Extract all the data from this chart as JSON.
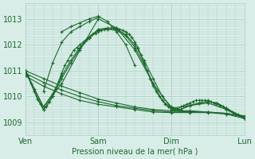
{
  "title": "",
  "xlabel": "Pression niveau de la mer( hPa )",
  "ylabel": "",
  "bg_color": "#d8ede8",
  "grid_color": "#b0d0c8",
  "line_color": "#1a6b2a",
  "marker_color": "#1a6b2a",
  "ylim": [
    1008.5,
    1013.5
  ],
  "xlim": [
    0,
    72
  ],
  "yticks": [
    1009,
    1010,
    1011,
    1012,
    1013
  ],
  "xticks": [
    0,
    24,
    48,
    72
  ],
  "xticklabels": [
    "Ven",
    "Sam",
    "Dim",
    "Lun"
  ],
  "series": [
    {
      "x": [
        0,
        1,
        2,
        3,
        4,
        5,
        6,
        7,
        8,
        9,
        10,
        11,
        12,
        13,
        14,
        15,
        16,
        17,
        18,
        19,
        20,
        21,
        22,
        23,
        24,
        25,
        26,
        27,
        28,
        29,
        30,
        31,
        32,
        33,
        34,
        35,
        36,
        37,
        38,
        39,
        40,
        41,
        42,
        43,
        44,
        45,
        46,
        47,
        48,
        49,
        50,
        51,
        52,
        53,
        54,
        55,
        56,
        57,
        58,
        59,
        60,
        61,
        62,
        63,
        64,
        65,
        66,
        67,
        68,
        69,
        70,
        71,
        72
      ],
      "y": [
        1011.0,
        1010.8,
        1010.5,
        1010.2,
        1009.9,
        1009.7,
        1009.5,
        1009.6,
        1009.8,
        1010.0,
        1010.3,
        1010.6,
        1010.9,
        1011.2,
        1011.4,
        1011.6,
        1011.8,
        1011.9,
        1012.0,
        1012.1,
        1012.2,
        1012.3,
        1012.4,
        1012.45,
        1012.5,
        1012.55,
        1012.6,
        1012.6,
        1012.65,
        1012.65,
        1012.65,
        1012.6,
        1012.55,
        1012.5,
        1012.4,
        1012.3,
        1012.1,
        1011.9,
        1011.6,
        1011.3,
        1011.0,
        1010.7,
        1010.4,
        1010.2,
        1010.0,
        1009.85,
        1009.7,
        1009.6,
        1009.5,
        1009.5,
        1009.5,
        1009.6,
        1009.65,
        1009.7,
        1009.75,
        1009.8,
        1009.85,
        1009.85,
        1009.85,
        1009.85,
        1009.85,
        1009.8,
        1009.75,
        1009.7,
        1009.65,
        1009.6,
        1009.5,
        1009.45,
        1009.4,
        1009.35,
        1009.3,
        1009.25,
        1009.2
      ]
    },
    {
      "x": [
        0,
        3,
        6,
        9,
        12,
        15,
        18,
        21,
        24,
        27,
        30,
        33,
        36,
        39,
        42,
        45,
        48,
        51,
        54,
        57,
        60,
        63,
        66,
        69,
        72
      ],
      "y": [
        1011.0,
        1010.3,
        1009.6,
        1010.1,
        1010.8,
        1011.4,
        1011.9,
        1012.3,
        1012.6,
        1012.65,
        1012.6,
        1012.4,
        1012.0,
        1011.4,
        1010.7,
        1010.0,
        1009.6,
        1009.5,
        1009.65,
        1009.75,
        1009.8,
        1009.75,
        1009.55,
        1009.35,
        1009.2
      ]
    },
    {
      "x": [
        0,
        3,
        6,
        9,
        12,
        15,
        18,
        21,
        24,
        27,
        30,
        33,
        36,
        39,
        42,
        45,
        48,
        51,
        54,
        57,
        60,
        63,
        66,
        69,
        72
      ],
      "y": [
        1011.0,
        1010.2,
        1009.5,
        1010.0,
        1010.7,
        1011.3,
        1011.85,
        1012.25,
        1012.55,
        1012.6,
        1012.55,
        1012.35,
        1011.9,
        1011.25,
        1010.5,
        1009.85,
        1009.55,
        1009.5,
        1009.65,
        1009.75,
        1009.8,
        1009.75,
        1009.55,
        1009.3,
        1009.15
      ]
    },
    {
      "x": [
        0,
        6,
        12,
        18,
        24,
        30,
        36,
        42,
        48,
        54,
        60,
        66,
        72
      ],
      "y": [
        1011.0,
        1009.6,
        1010.5,
        1011.8,
        1013.0,
        1012.65,
        1011.8,
        1010.5,
        1009.55,
        1009.65,
        1009.75,
        1009.5,
        1009.15
      ]
    },
    {
      "x": [
        0,
        6,
        12,
        18,
        24,
        30,
        36,
        42,
        48,
        54,
        60,
        66,
        72
      ],
      "y": [
        1011.0,
        1010.7,
        1010.4,
        1010.15,
        1009.9,
        1009.75,
        1009.6,
        1009.5,
        1009.45,
        1009.45,
        1009.4,
        1009.35,
        1009.25
      ]
    },
    {
      "x": [
        0,
        6,
        12,
        18,
        24,
        30,
        36,
        42,
        48,
        54,
        60,
        66,
        72
      ],
      "y": [
        1010.9,
        1010.55,
        1010.25,
        1010.0,
        1009.8,
        1009.65,
        1009.55,
        1009.45,
        1009.4,
        1009.42,
        1009.4,
        1009.35,
        1009.2
      ]
    },
    {
      "x": [
        0,
        6,
        12,
        18,
        24,
        30,
        36,
        42,
        48,
        54,
        60,
        66,
        72
      ],
      "y": [
        1010.8,
        1010.4,
        1010.1,
        1009.85,
        1009.7,
        1009.6,
        1009.5,
        1009.4,
        1009.38,
        1009.38,
        1009.38,
        1009.32,
        1009.15
      ]
    },
    {
      "x": [
        6,
        9,
        12,
        15,
        18,
        21,
        24
      ],
      "y": [
        1010.2,
        1011.3,
        1012.1,
        1012.5,
        1012.7,
        1012.9,
        1013.05
      ]
    },
    {
      "x": [
        12,
        15,
        18,
        21,
        24,
        27,
        30,
        33,
        36
      ],
      "y": [
        1012.5,
        1012.7,
        1012.85,
        1013.0,
        1013.1,
        1012.9,
        1012.5,
        1012.0,
        1011.2
      ]
    }
  ]
}
